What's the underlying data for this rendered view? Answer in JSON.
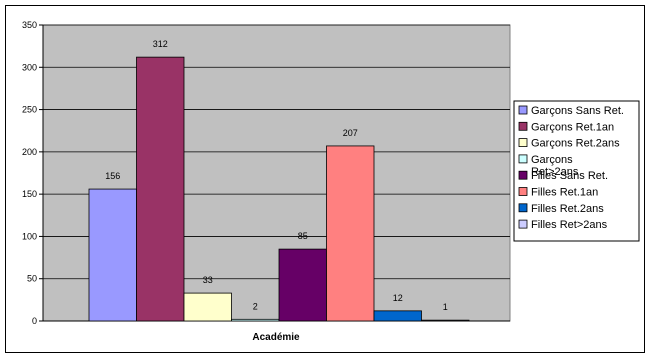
{
  "chart_data": {
    "type": "bar",
    "title": "",
    "xlabel": "Académie",
    "ylabel": "",
    "ylim": [
      0,
      350
    ],
    "yticks": [
      0,
      50,
      100,
      150,
      200,
      250,
      300,
      350
    ],
    "grid": true,
    "legend_position": "right",
    "categories": [
      "Académie"
    ],
    "series": [
      {
        "name": "Garçons Sans Ret.",
        "values": [
          156
        ],
        "color": "#9999ff",
        "label": "156"
      },
      {
        "name": "Garçons Ret.1an",
        "values": [
          312
        ],
        "color": "#993366",
        "label": "312"
      },
      {
        "name": "Garçons Ret.2ans",
        "values": [
          33
        ],
        "color": "#ffffcc",
        "label": "33"
      },
      {
        "name": "Garçons Ret>2ans",
        "values": [
          2
        ],
        "color": "#ccffff",
        "label": "2"
      },
      {
        "name": "Filles Sans Ret.",
        "values": [
          85
        ],
        "color": "#660066",
        "label": "85"
      },
      {
        "name": "Filles Ret.1an",
        "values": [
          207
        ],
        "color": "#ff8080",
        "label": "207"
      },
      {
        "name": "Filles Ret.2ans",
        "values": [
          12
        ],
        "color": "#0066cc",
        "label": "12"
      },
      {
        "name": "Filles Ret>2ans",
        "values": [
          1
        ],
        "color": "#ccccff",
        "label": "1"
      }
    ],
    "plot_background": "#c0c0c0"
  }
}
